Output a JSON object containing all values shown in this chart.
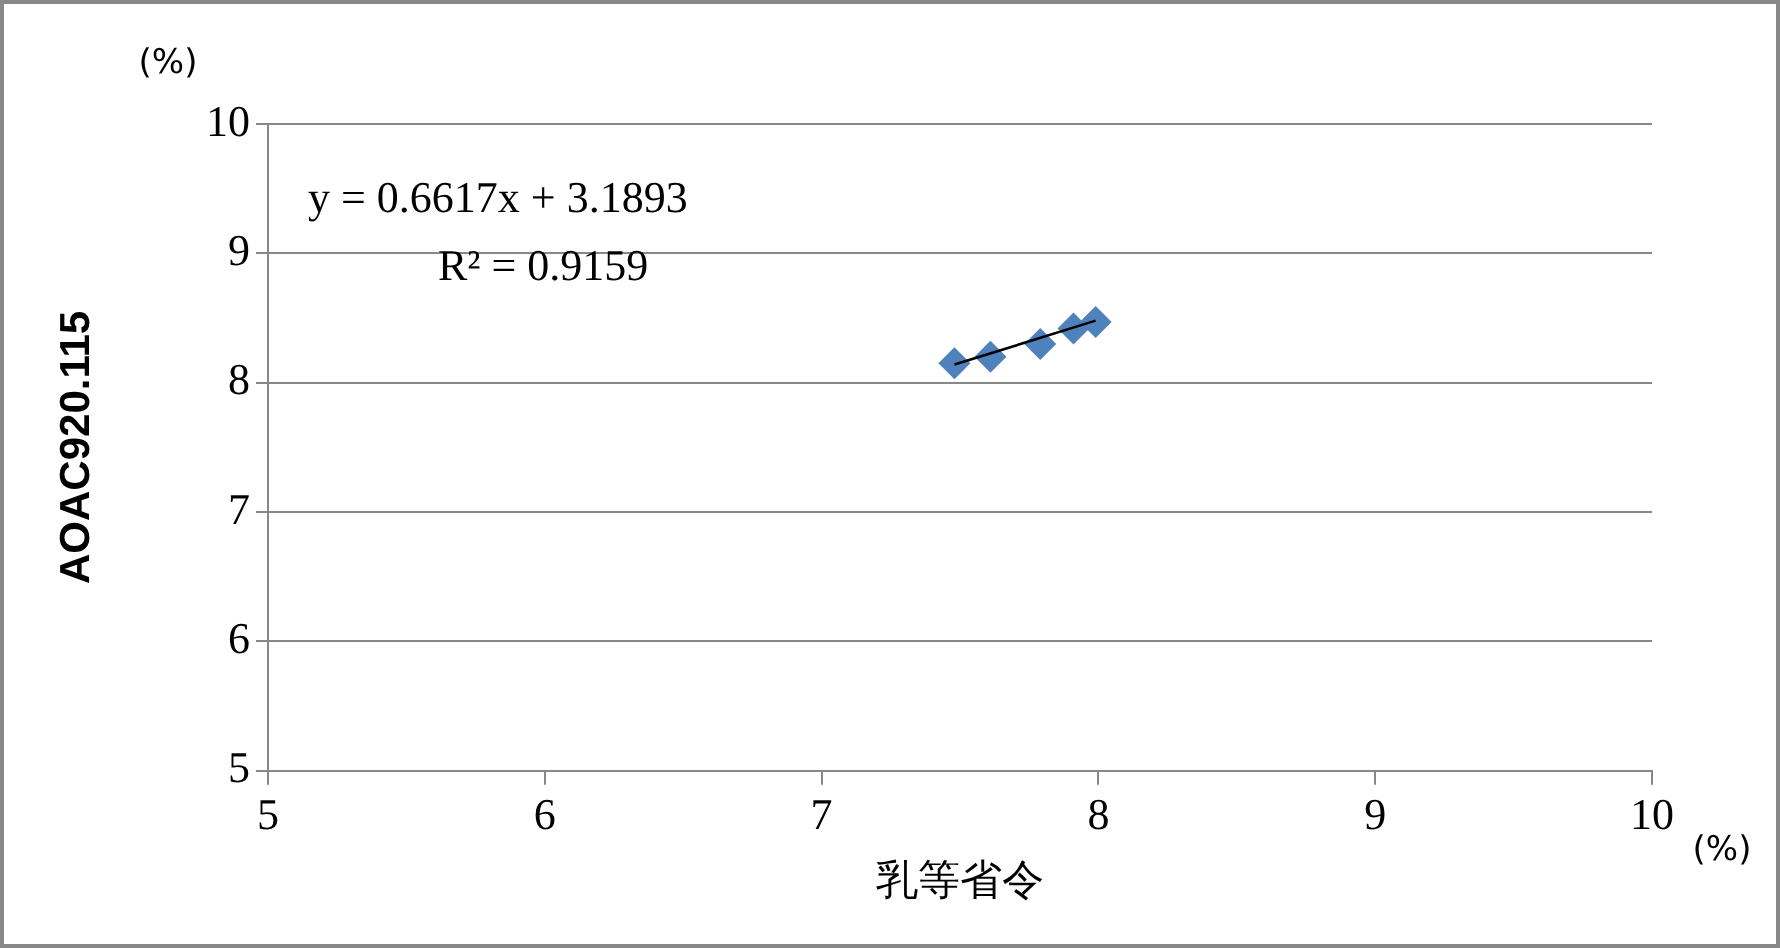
{
  "chart_data": {
    "type": "scatter",
    "xlabel": "乳等省令",
    "ylabel": "AOAC920.115",
    "xlim": [
      5,
      10
    ],
    "xticks": [
      5,
      6,
      7,
      8,
      9,
      10
    ],
    "ylim": [
      5,
      10
    ],
    "yticks": [
      5,
      6,
      7,
      8,
      9,
      10
    ],
    "grid": "y",
    "marker": "diamond",
    "series": [
      {
        "type": "scatter",
        "color": "#4f81bd",
        "x": [
          7.48,
          7.61,
          7.79,
          7.91,
          7.99
        ],
        "values": [
          8.15,
          8.2,
          8.3,
          8.42,
          8.47
        ]
      },
      {
        "type": "line",
        "color": "#000000",
        "marker": "none",
        "x": [
          7.48,
          7.99
        ],
        "values": [
          8.14,
          8.48
        ]
      }
    ],
    "annotations": [
      "y = 0.6617x + 3.1893",
      "R² = 0.9159",
      "(%)",
      "(%)"
    ]
  }
}
